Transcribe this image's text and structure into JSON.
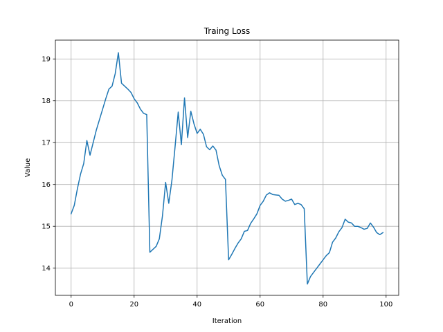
{
  "chart_data": {
    "type": "line",
    "title": "Traing Loss",
    "xlabel": "Iteration",
    "ylabel": "Value",
    "xlim": [
      -5,
      104
    ],
    "ylim": [
      13.35,
      19.45
    ],
    "xticks": [
      0,
      20,
      40,
      60,
      80,
      100
    ],
    "yticks": [
      14,
      15,
      16,
      17,
      18,
      19
    ],
    "grid": true,
    "line_color": "#1f77b4",
    "series": [
      {
        "x": [
          0,
          1,
          2,
          3,
          4,
          5,
          6,
          7,
          8,
          9,
          10,
          11,
          12,
          13,
          14,
          15,
          16,
          17,
          18,
          19,
          20,
          21,
          22,
          23,
          24,
          25,
          26,
          27,
          28,
          29,
          30,
          31,
          32,
          33,
          34,
          35,
          36,
          37,
          38,
          39,
          40,
          41,
          42,
          43,
          44,
          45,
          46,
          47,
          48,
          49,
          50,
          51,
          52,
          53,
          54,
          55,
          56,
          57,
          58,
          59,
          60,
          61,
          62,
          63,
          64,
          65,
          66,
          67,
          68,
          69,
          70,
          71,
          72,
          73,
          74,
          75,
          76,
          77,
          78,
          79,
          80,
          81,
          82,
          83,
          84,
          85,
          86,
          87,
          88,
          89,
          90,
          91,
          92,
          93,
          94,
          95,
          96,
          97,
          98,
          99
        ],
        "values": [
          15.3,
          15.5,
          15.9,
          16.25,
          16.5,
          17.05,
          16.7,
          17.0,
          17.3,
          17.55,
          17.8,
          18.05,
          18.28,
          18.35,
          18.65,
          19.15,
          18.42,
          18.35,
          18.28,
          18.2,
          18.05,
          17.95,
          17.8,
          17.7,
          17.67,
          14.38,
          14.45,
          14.52,
          14.7,
          15.25,
          16.05,
          15.55,
          16.1,
          16.9,
          17.73,
          16.95,
          18.07,
          17.12,
          17.75,
          17.45,
          17.22,
          17.32,
          17.2,
          16.9,
          16.83,
          16.92,
          16.82,
          16.45,
          16.22,
          16.12,
          14.2,
          14.33,
          14.47,
          14.6,
          14.7,
          14.88,
          14.9,
          15.07,
          15.18,
          15.3,
          15.5,
          15.6,
          15.75,
          15.8,
          15.76,
          15.75,
          15.74,
          15.65,
          15.6,
          15.62,
          15.65,
          15.52,
          15.55,
          15.52,
          15.42,
          13.62,
          13.8,
          13.9,
          14.0,
          14.1,
          14.2,
          14.3,
          14.37,
          14.62,
          14.72,
          14.87,
          14.97,
          15.17,
          15.1,
          15.08,
          15.0,
          15.0,
          14.97,
          14.93,
          14.95,
          15.08,
          14.98,
          14.85,
          14.8,
          14.85
        ]
      }
    ]
  }
}
